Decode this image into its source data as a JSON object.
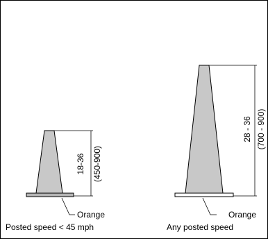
{
  "figure": {
    "colors": {
      "cone_fill": "#c8c8c8",
      "base_fill_small": "#b4b4b4",
      "base_fill_large": "#ffffff",
      "stroke": "#000000",
      "frame": "#000000",
      "background": "#ffffff"
    },
    "left_cone": {
      "dimension_inches": "18-36",
      "dimension_mm": "(450-900)",
      "base_color_label": "Orange",
      "caption": "Posted speed < 45 mph"
    },
    "right_cone": {
      "dimension_inches": "28 - 36",
      "dimension_mm": "(700 - 900)",
      "base_color_label": "Orange",
      "caption": "Any posted speed"
    }
  }
}
